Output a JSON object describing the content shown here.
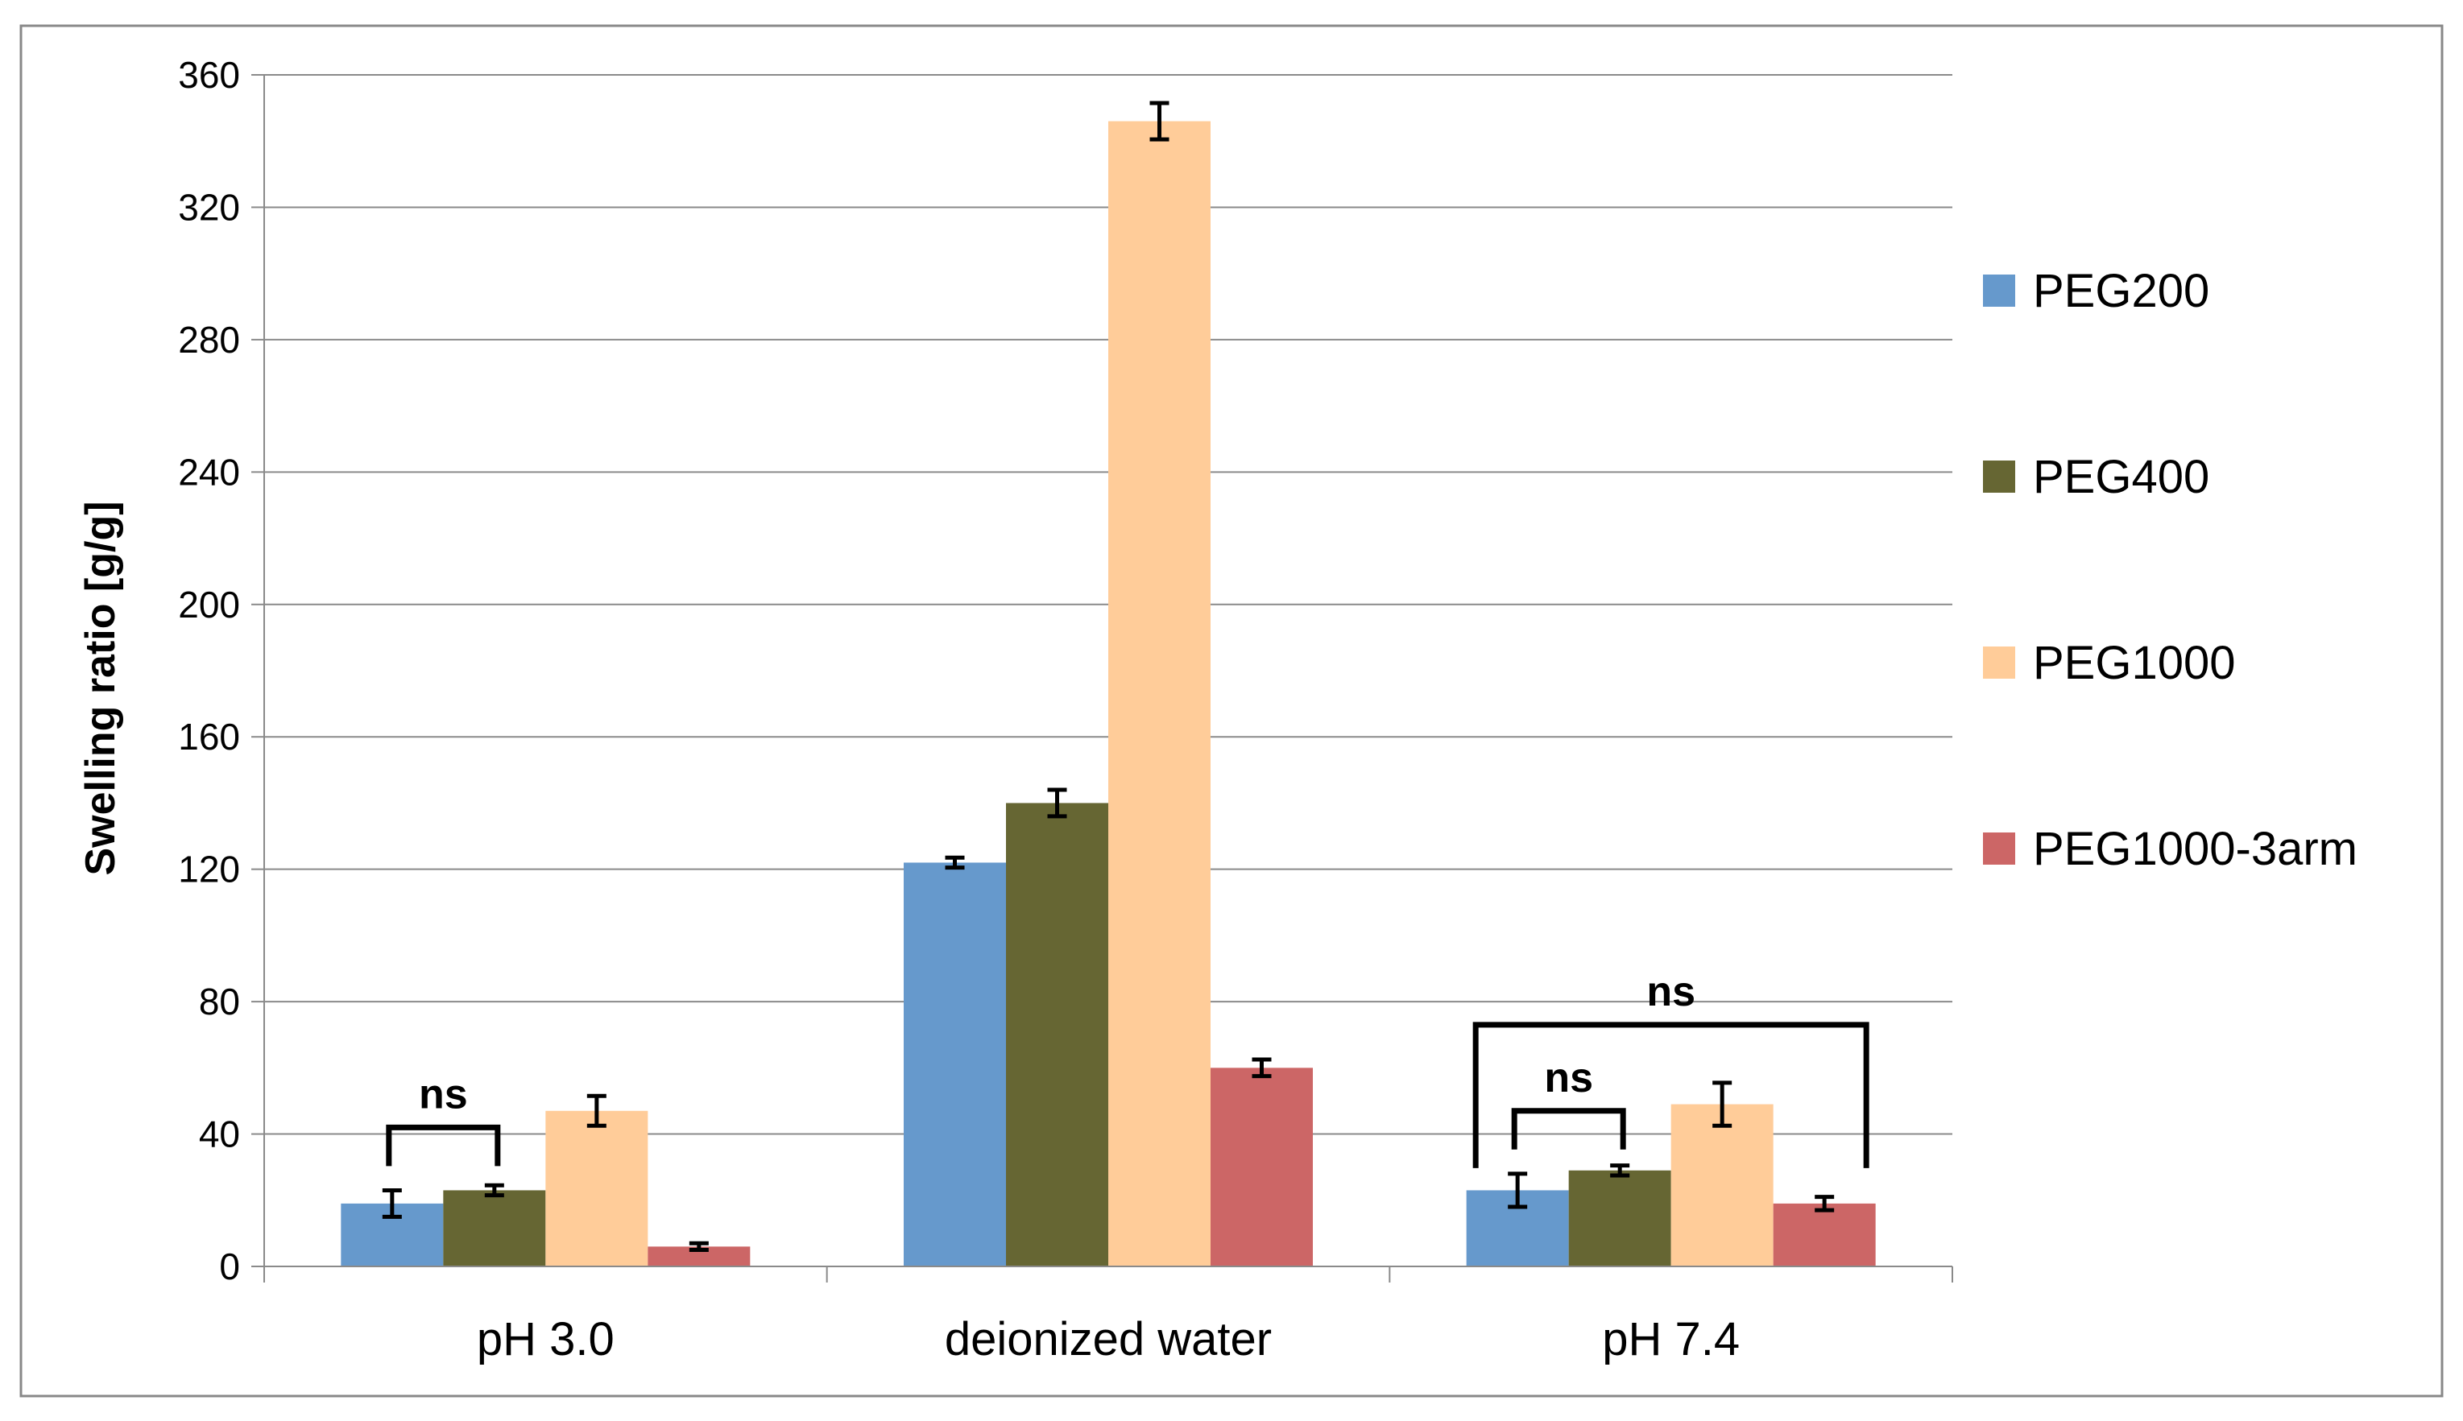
{
  "chart_data": {
    "type": "bar",
    "title": "",
    "xlabel": "",
    "ylabel": "Swelling ratio [g/g]",
    "ylim": [
      0,
      360
    ],
    "yticks": [
      0,
      40,
      80,
      120,
      160,
      200,
      240,
      280,
      320,
      360
    ],
    "ytick_labels": [
      "0",
      "40",
      "80",
      "120",
      "160",
      "200",
      "240",
      "280",
      "320",
      "360"
    ],
    "categories": [
      "pH 3.0",
      "deionized water",
      "pH 7.4"
    ],
    "grid": true,
    "legend_position": "right",
    "series": [
      {
        "name": "PEG200",
        "color": "#6699CC",
        "values": [
          19,
          122,
          23
        ],
        "errors": [
          4,
          1.5,
          5
        ]
      },
      {
        "name": "PEG400",
        "color": "#666633",
        "values": [
          23,
          140,
          29
        ],
        "errors": [
          1.5,
          4,
          1.5
        ]
      },
      {
        "name": "PEG1000",
        "color": "#FFCC99",
        "values": [
          47,
          346,
          49
        ],
        "errors": [
          4.5,
          5.5,
          6.5
        ]
      },
      {
        "name": "PEG1000-3arm",
        "color": "#CC6666",
        "values": [
          6,
          60,
          19
        ],
        "errors": [
          1,
          2.5,
          2
        ]
      }
    ],
    "annotations": [
      {
        "label": "ns",
        "category": "pH 3.0",
        "from_series": "PEG200",
        "to_series": "PEG400",
        "level": 42
      },
      {
        "label": "ns",
        "category": "pH 7.4",
        "from_series": "PEG200",
        "to_series": "PEG400",
        "level": 47
      },
      {
        "label": "ns",
        "category": "pH 7.4",
        "from_series": "PEG200",
        "to_series": "PEG1000-3arm",
        "level": 73
      }
    ]
  }
}
